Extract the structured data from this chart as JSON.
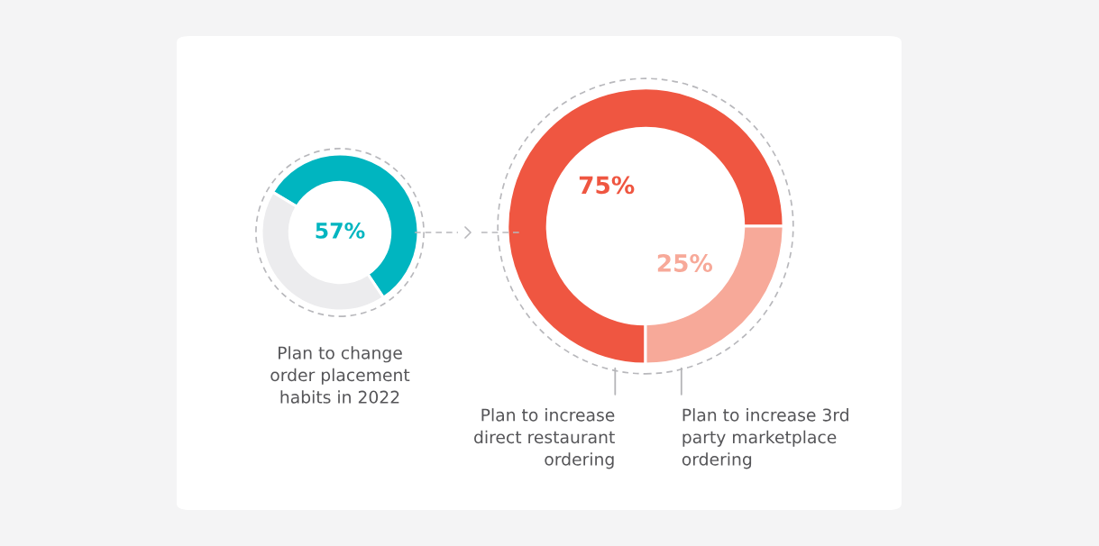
{
  "chart_data": [
    {
      "type": "donut",
      "title": "Plan to change\norder placement\nhabits in 2022",
      "categories": [
        null,
        null
      ],
      "values": [
        57,
        43
      ],
      "colors": [
        "#00b5c0",
        "#ececee"
      ],
      "value_labels": [
        "57%",
        null
      ]
    },
    {
      "type": "donut",
      "categories": [
        "Plan to increase\ndirect restaurant\nordering",
        "Plan to increase 3rd\nparty marketplace\nordering"
      ],
      "values": [
        75,
        25
      ],
      "colors": [
        "#ef5641",
        "#f7a999"
      ],
      "value_labels": [
        "75%",
        "25%"
      ]
    }
  ]
}
